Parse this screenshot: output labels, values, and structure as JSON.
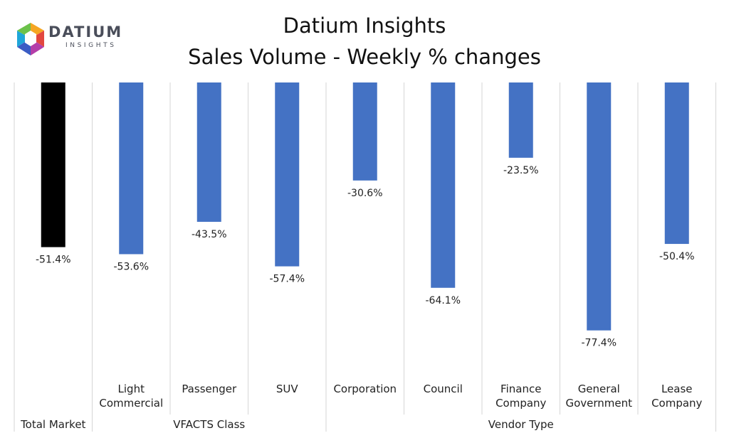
{
  "logo": {
    "name": "DATIUM",
    "tagline": "INSIGHTS"
  },
  "chart_data": {
    "type": "bar",
    "title": "Datium Insights",
    "subtitle": "Sales Volume - Weekly % changes",
    "categories": [
      "Total Market",
      "Light Commercial",
      "Passenger",
      "SUV",
      "Corporation",
      "Council",
      "Finance Company",
      "General Government",
      "Lease Company"
    ],
    "category_lines": [
      [
        "Total Market"
      ],
      [
        "Light",
        "Commercial"
      ],
      [
        "Passenger"
      ],
      [
        "SUV"
      ],
      [
        "Corporation"
      ],
      [
        "Council"
      ],
      [
        "Finance",
        "Company"
      ],
      [
        "General",
        "Government"
      ],
      [
        "Lease",
        "Company"
      ]
    ],
    "groups": [
      {
        "label": "",
        "categories": [
          "Total Market"
        ]
      },
      {
        "label": "VFACTS Class",
        "categories": [
          "Light Commercial",
          "Passenger",
          "SUV"
        ]
      },
      {
        "label": "Vendor Type",
        "categories": [
          "Corporation",
          "Council",
          "Finance Company",
          "General Government",
          "Lease Company"
        ]
      }
    ],
    "values": [
      -51.4,
      -53.6,
      -43.5,
      -57.4,
      -30.6,
      -64.1,
      -23.5,
      -77.4,
      -50.4
    ],
    "data_labels": [
      "-51.4%",
      "-53.6%",
      "-43.5%",
      "-57.4%",
      "-30.6%",
      "-64.1%",
      "-23.5%",
      "-77.4%",
      "-50.4%"
    ],
    "colors": [
      "#000000",
      "#4472C4",
      "#4472C4",
      "#4472C4",
      "#4472C4",
      "#4472C4",
      "#4472C4",
      "#4472C4",
      "#4472C4"
    ],
    "ylim": [
      -100,
      0
    ],
    "grid": "vertical separators",
    "legend": "none"
  }
}
